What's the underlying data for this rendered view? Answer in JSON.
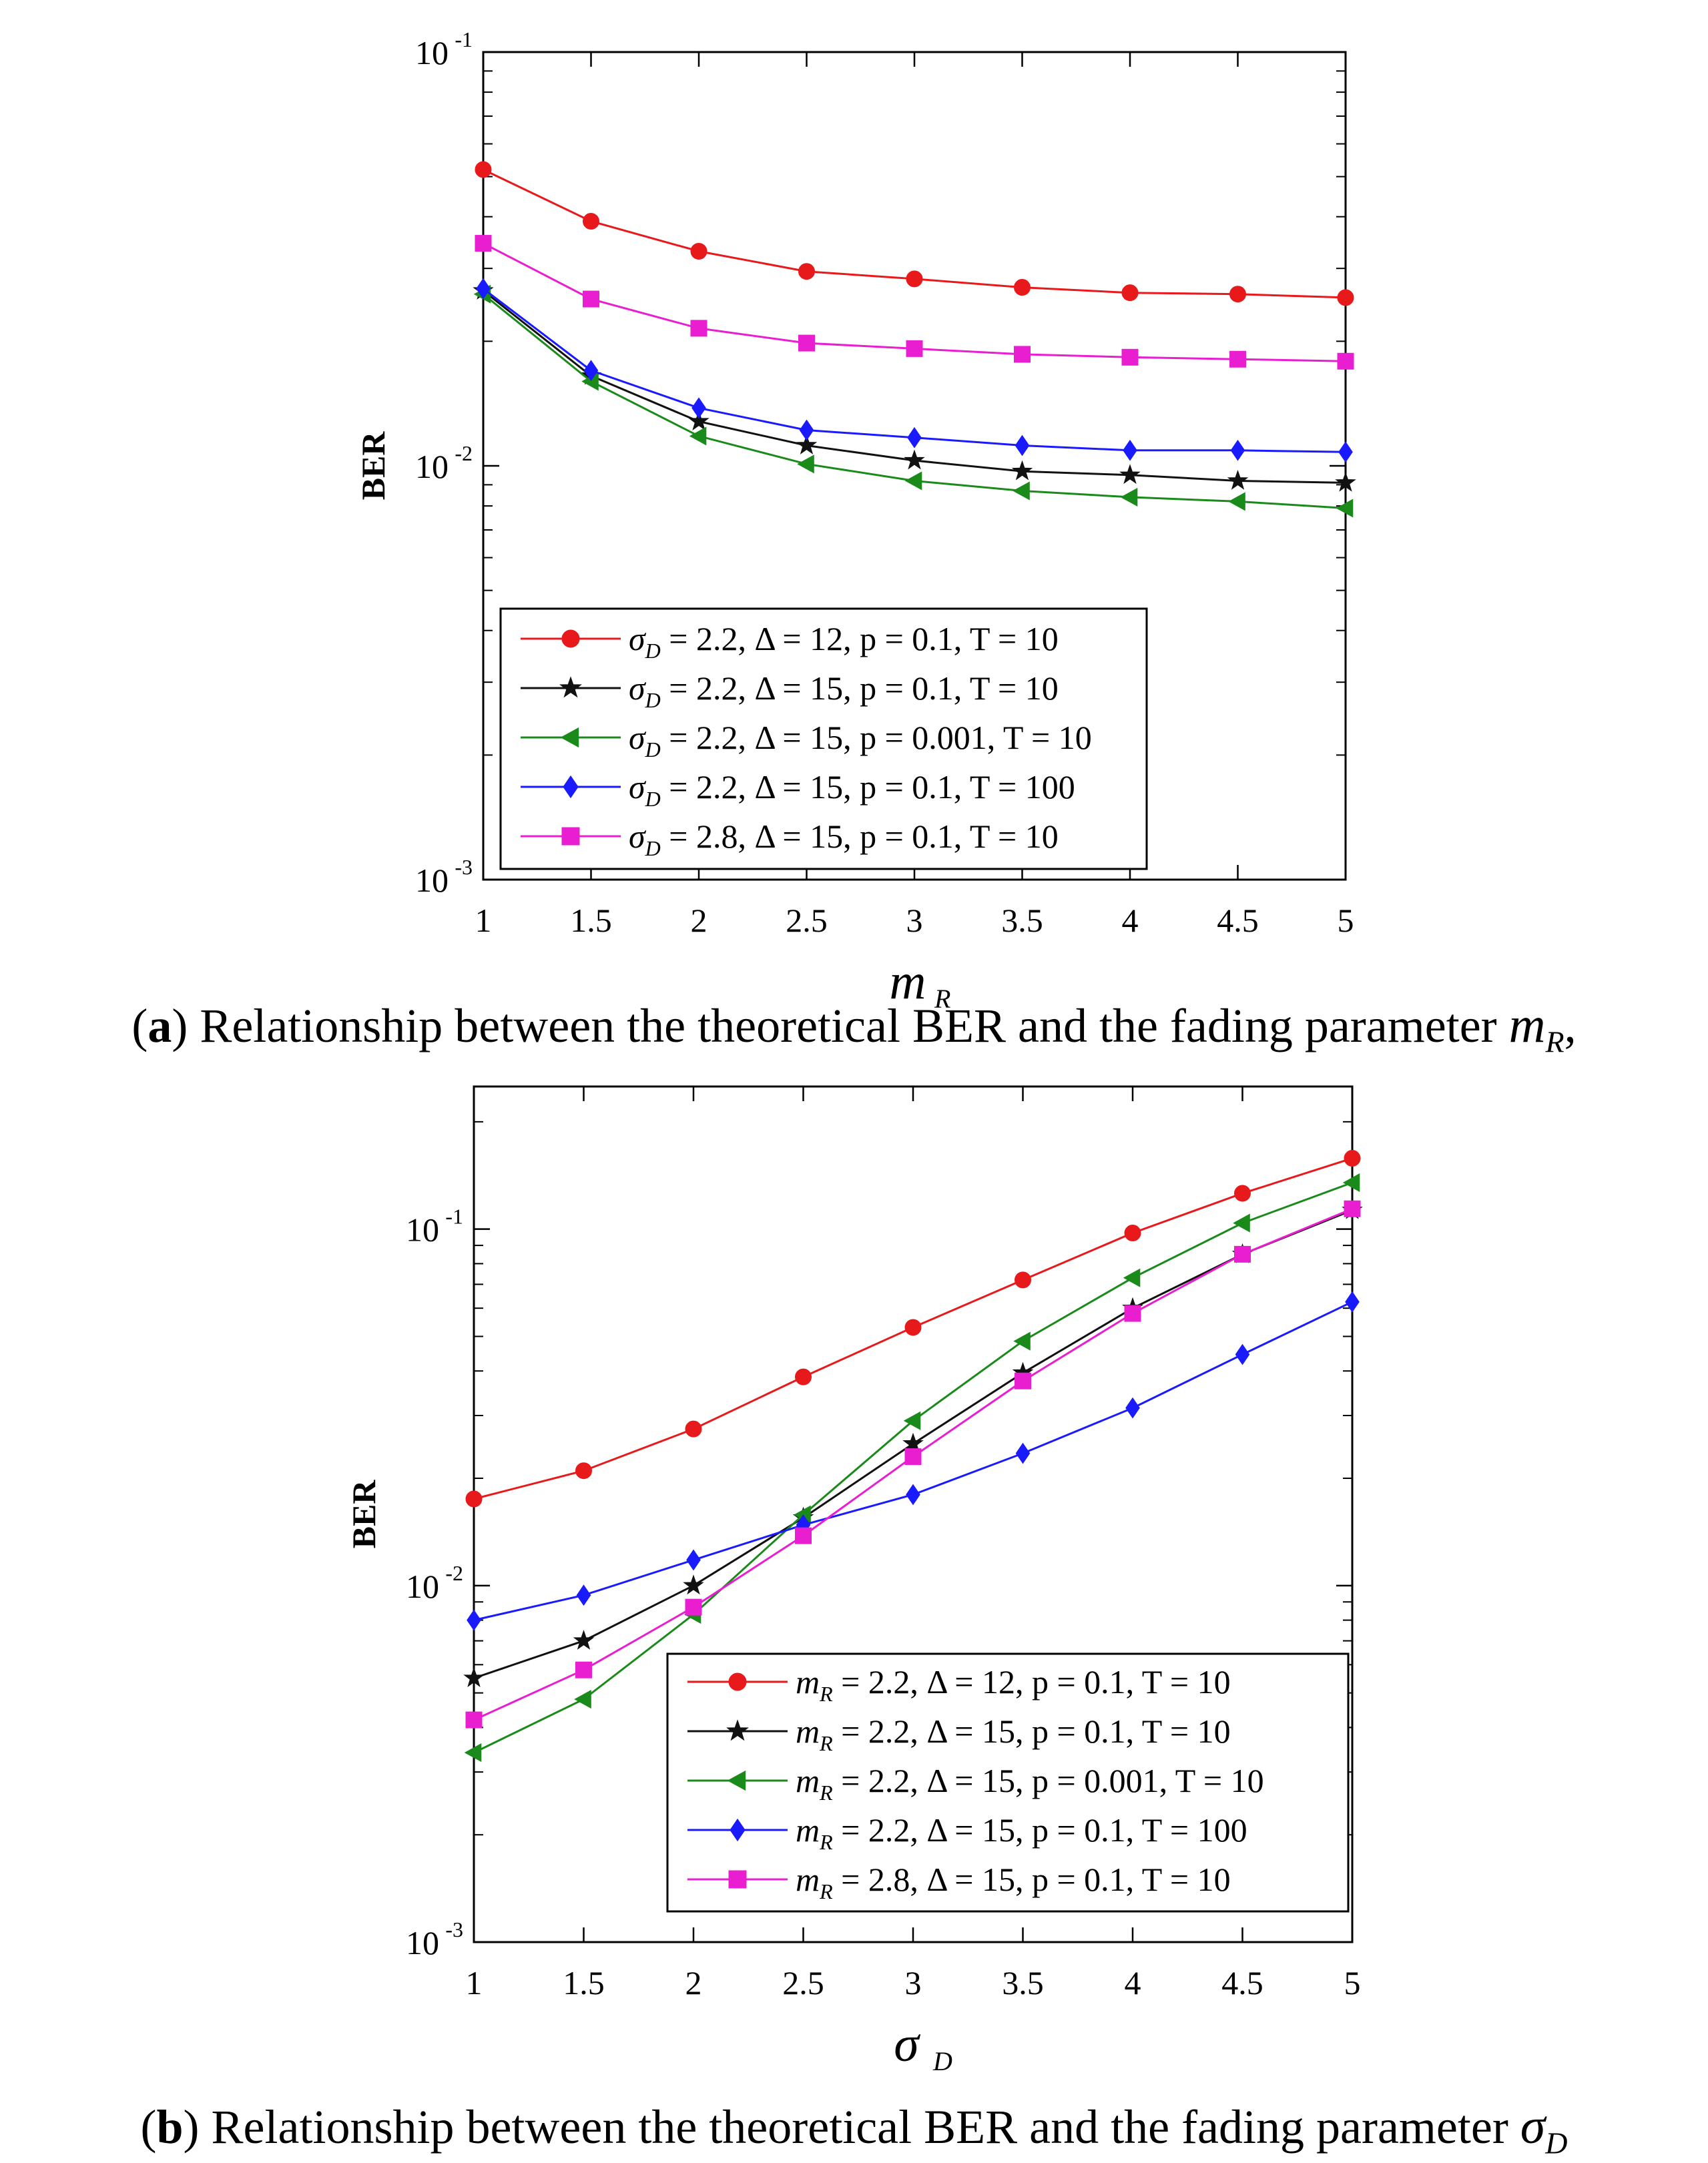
{
  "chart_data": [
    {
      "type": "line",
      "id": "a",
      "xlabel": "m",
      "xlabel_sub": "R",
      "ylabel": "BER",
      "yscale": "log",
      "xlim": [
        1,
        5
      ],
      "ylim_exp": [
        -3,
        -1
      ],
      "xticks": [
        "1",
        "1.5",
        "2",
        "2.5",
        "3",
        "3.5",
        "4",
        "4.5",
        "5"
      ],
      "yticks": [
        {
          "base": "10",
          "exp": "-3"
        },
        {
          "base": "10",
          "exp": "-2"
        },
        {
          "base": "10",
          "exp": "-1"
        }
      ],
      "x": [
        1,
        1.5,
        2,
        2.5,
        3,
        3.5,
        4,
        4.5,
        5
      ],
      "legend_position": "lower-center",
      "series": [
        {
          "sym": "σ",
          "sub": "D",
          "rest": " = 2.2,  Δ = 12,  p = 0.1,  T = 10",
          "color": "#e8191b",
          "marker": "circle",
          "values": [
            0.052,
            0.039,
            0.033,
            0.0295,
            0.0283,
            0.027,
            0.0262,
            0.026,
            0.0255
          ]
        },
        {
          "sym": "σ",
          "sub": "D",
          "rest": " = 2.2,  Δ = 15,  p = 0.1,  T = 10",
          "color": "#111111",
          "marker": "star",
          "values": [
            0.0265,
            0.0165,
            0.0128,
            0.0112,
            0.0103,
            0.0097,
            0.0095,
            0.0092,
            0.0091
          ]
        },
        {
          "sym": "σ",
          "sub": "D",
          "rest": " = 2.2,  Δ = 15,  p = 0.001,  T = 10",
          "color": "#1a8a1a",
          "marker": "triangle-left",
          "values": [
            0.026,
            0.016,
            0.0118,
            0.0101,
            0.0092,
            0.0087,
            0.0084,
            0.0082,
            0.0079
          ]
        },
        {
          "sym": "σ",
          "sub": "D",
          "rest": " = 2.2,  Δ = 15,  p = 0.1,  T = 100",
          "color": "#1a1aff",
          "marker": "diamond",
          "values": [
            0.0268,
            0.017,
            0.0138,
            0.0122,
            0.0117,
            0.0112,
            0.0109,
            0.0109,
            0.0108
          ]
        },
        {
          "sym": "σ",
          "sub": "D",
          "rest": " = 2.8,  Δ = 15,  p = 0.1,  T = 10",
          "color": "#e81ed0",
          "marker": "square",
          "values": [
            0.0345,
            0.0253,
            0.0215,
            0.0198,
            0.0192,
            0.0186,
            0.0183,
            0.0181,
            0.0179
          ]
        }
      ]
    },
    {
      "type": "line",
      "id": "b",
      "xlabel": "σ",
      "xlabel_sub": "D",
      "ylabel": "BER",
      "yscale": "log",
      "xlim": [
        1,
        5
      ],
      "ylim_exp": [
        -3,
        -0.6
      ],
      "xticks": [
        "1",
        "1.5",
        "2",
        "2.5",
        "3",
        "3.5",
        "4",
        "4.5",
        "5"
      ],
      "yticks": [
        {
          "base": "10",
          "exp": "-3"
        },
        {
          "base": "10",
          "exp": "-2"
        },
        {
          "base": "10",
          "exp": "-1"
        }
      ],
      "x": [
        1,
        1.5,
        2,
        2.5,
        3,
        3.5,
        4,
        4.5,
        5
      ],
      "legend_position": "lower-right",
      "series": [
        {
          "sym": "m",
          "sub": "R",
          "rest": " = 2.2,  Δ = 12,  p = 0.1,  T = 10",
          "color": "#e8191b",
          "marker": "circle",
          "values": [
            0.0175,
            0.021,
            0.0275,
            0.0385,
            0.053,
            0.072,
            0.0975,
            0.126,
            0.158
          ]
        },
        {
          "sym": "m",
          "sub": "R",
          "rest": " = 2.2,  Δ = 15,  p = 0.1,  T = 10",
          "color": "#111111",
          "marker": "star",
          "values": [
            0.0055,
            0.007,
            0.01,
            0.0155,
            0.025,
            0.0395,
            0.06,
            0.085,
            0.113
          ]
        },
        {
          "sym": "m",
          "sub": "R",
          "rest": " = 2.2,  Δ = 15,  p = 0.001,  T = 10",
          "color": "#1a8a1a",
          "marker": "triangle-left",
          "values": [
            0.0034,
            0.0048,
            0.0083,
            0.0158,
            0.029,
            0.0485,
            0.073,
            0.104,
            0.135
          ]
        },
        {
          "sym": "m",
          "sub": "R",
          "rest": " = 2.2,  Δ = 15,  p = 0.1,  T = 100",
          "color": "#1a1aff",
          "marker": "diamond",
          "values": [
            0.008,
            0.0094,
            0.0118,
            0.0148,
            0.018,
            0.0235,
            0.0315,
            0.0445,
            0.0625
          ]
        },
        {
          "sym": "m",
          "sub": "R",
          "rest": " = 2.8,  Δ = 15,  p = 0.1,  T = 10",
          "color": "#e81ed0",
          "marker": "square",
          "values": [
            0.0042,
            0.0058,
            0.0087,
            0.0138,
            0.023,
            0.0375,
            0.058,
            0.085,
            0.114
          ]
        }
      ]
    }
  ],
  "captions": {
    "a": {
      "label": "a",
      "text": " Relationship between the theoretical BER and the fading parameter ",
      "sym": "m",
      "sub": "R",
      "tail": ","
    },
    "b": {
      "label": "b",
      "text": " Relationship between the theoretical BER and the fading parameter ",
      "sym": "σ",
      "sub": "D",
      "tail": ""
    }
  }
}
